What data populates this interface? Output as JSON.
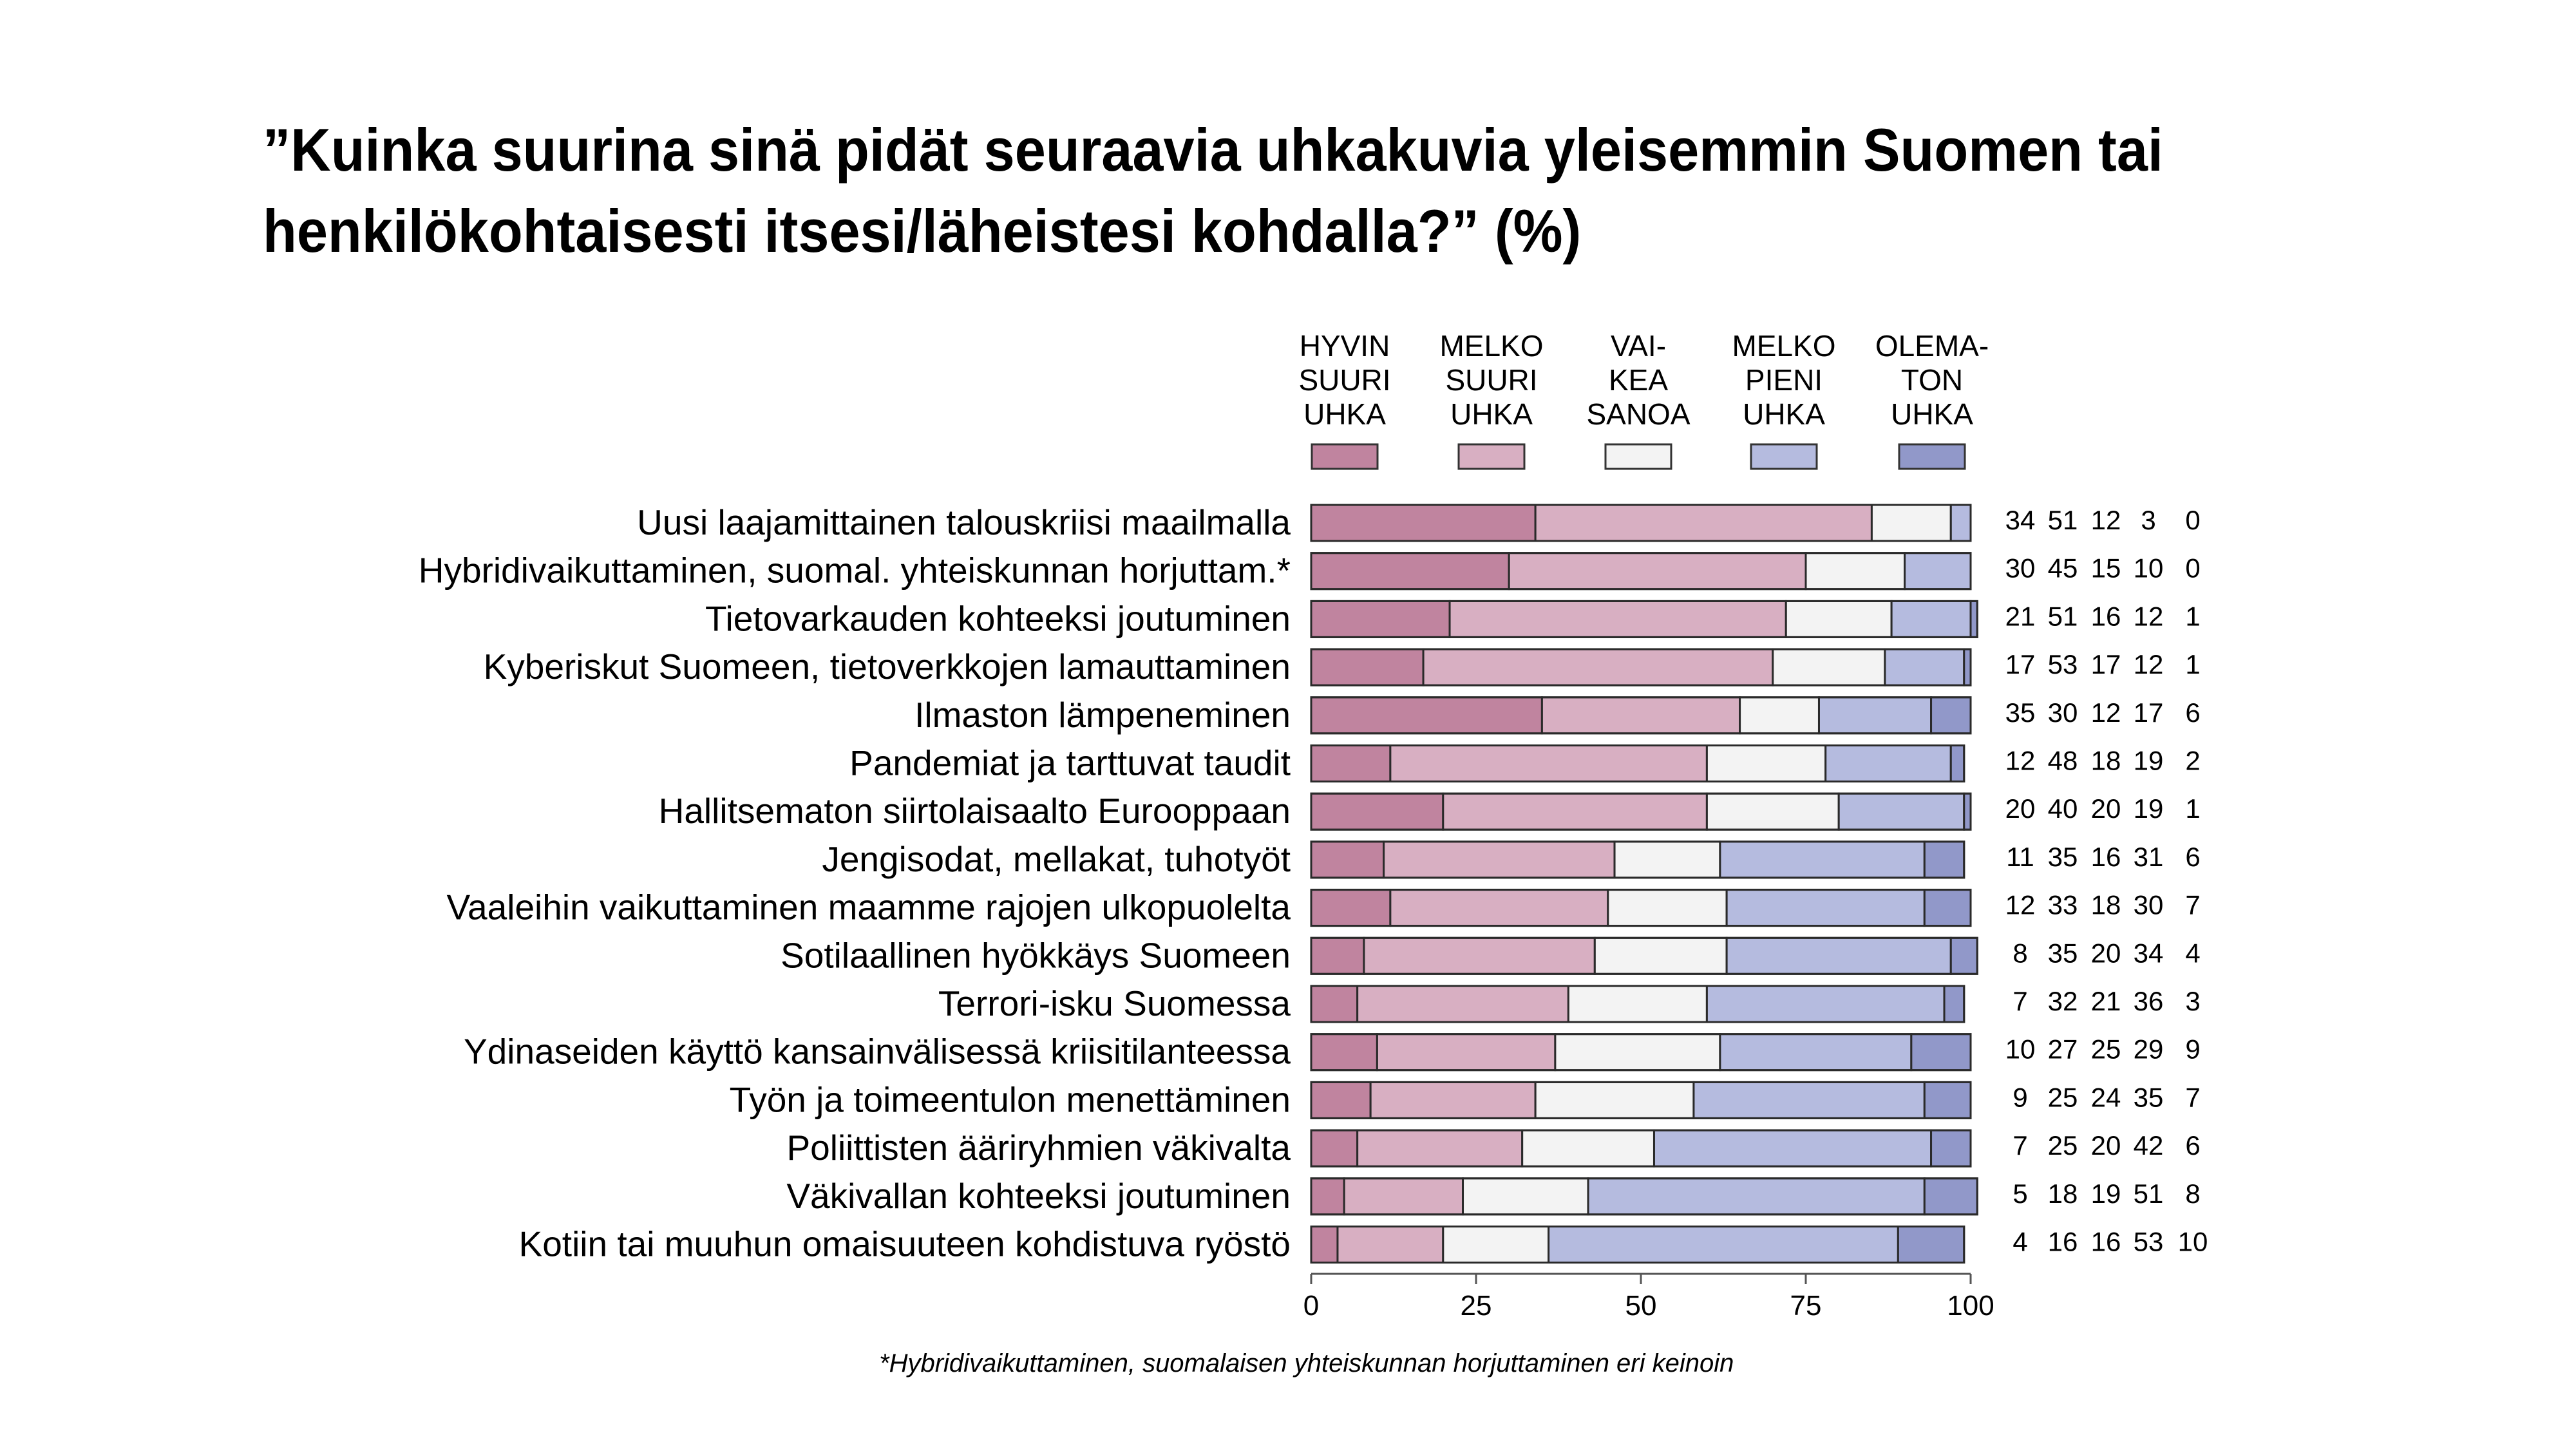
{
  "title_lines": [
    "”Kuinka suurina sinä pidät seuraavia uhkakuvia yleisemmin Suomen tai",
    "henkilökohtaisesti itsesi/läheistesi kohdalla?” (%)"
  ],
  "footnote": "*Hybridivaikuttaminen, suomalaisen yhteiskunnan horjuttaminen eri keinoin",
  "chart_data": {
    "type": "bar",
    "orientation": "horizontal",
    "stacked": true,
    "xlim": [
      0,
      100
    ],
    "xticks": [
      "0",
      "25",
      "50",
      "75",
      "100"
    ],
    "legend_position": "top",
    "categories": [
      "Uusi laajamittainen talouskriisi maailmalla",
      "Hybridivaikuttaminen, suomal. yhteiskunnan horjuttam.*",
      "Tietovarkauden kohteeksi joutuminen",
      "Kyberiskut Suomeen, tietoverkkojen lamauttaminen",
      "Ilmaston lämpeneminen",
      "Pandemiat ja tarttuvat taudit",
      "Hallitsematon siirtolaisaalto Eurooppaan",
      "Jengisodat, mellakat, tuhotyöt",
      "Vaaleihin vaikuttaminen maamme rajojen ulkopuolelta",
      "Sotilaallinen hyökkäys Suomeen",
      "Terrori-isku Suomessa",
      "Ydinaseiden käyttö kansainvälisessä kriisitilanteessa",
      "Työn ja toimeentulon menettäminen",
      "Poliittisten ääriryhmien väkivalta",
      "Väkivallan kohteeksi joutuminen",
      "Kotiin tai muuhun omaisuuteen kohdistuva ryöstö"
    ],
    "series": [
      {
        "name": [
          "HYVIN",
          "SUURI",
          "UHKA"
        ],
        "color": "#c0849f",
        "values": [
          34,
          30,
          21,
          17,
          35,
          12,
          20,
          11,
          12,
          8,
          7,
          10,
          9,
          7,
          5,
          4
        ]
      },
      {
        "name": [
          "MELKO",
          "SUURI",
          "UHKA"
        ],
        "color": "#d8afc2",
        "values": [
          51,
          45,
          51,
          53,
          30,
          48,
          40,
          35,
          33,
          35,
          32,
          27,
          25,
          25,
          18,
          16
        ]
      },
      {
        "name": [
          "VAI-",
          "KEA",
          "SANOA"
        ],
        "color": "#f3f3f3",
        "values": [
          12,
          15,
          16,
          17,
          12,
          18,
          20,
          16,
          18,
          20,
          21,
          25,
          24,
          20,
          19,
          16
        ]
      },
      {
        "name": [
          "MELKO",
          "PIENI",
          "UHKA"
        ],
        "color": "#b5bbdf",
        "values": [
          3,
          10,
          12,
          12,
          17,
          19,
          19,
          31,
          30,
          34,
          36,
          29,
          35,
          42,
          51,
          53
        ]
      },
      {
        "name": [
          "OLEMA-",
          "TON",
          "UHKA"
        ],
        "color": "#9198c9",
        "values": [
          0,
          0,
          1,
          1,
          6,
          2,
          1,
          6,
          7,
          4,
          3,
          9,
          7,
          6,
          8,
          10
        ]
      }
    ]
  }
}
